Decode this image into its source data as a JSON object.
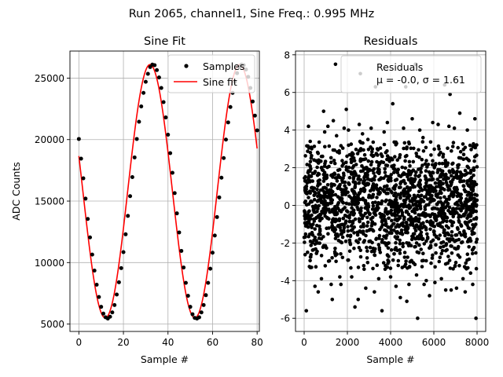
{
  "figure": {
    "suptitle": "Run 2065, channel1, Sine Freq.: 0.995 MHz"
  },
  "colors": {
    "fit_line": "#ff0000",
    "samples": "#000000",
    "residuals": "#000000",
    "grid": "#b0b0b0",
    "axes": "#000000"
  },
  "chart_data": [
    {
      "type": "line",
      "title": "Sine Fit",
      "xlabel": "Sample #",
      "ylabel": "ADC Counts",
      "xlim": [
        -4,
        81
      ],
      "ylim": [
        4400,
        27200
      ],
      "xticks": [
        0,
        20,
        40,
        60,
        80
      ],
      "yticks": [
        5000,
        10000,
        15000,
        20000,
        25000
      ],
      "grid": true,
      "legend": {
        "location": "upper right",
        "entries": [
          "Samples",
          "Sine fit"
        ]
      },
      "fit_model": {
        "offset": 15800,
        "amplitude": 10300,
        "period_samples": 40.2,
        "phase_rad": 2.86
      },
      "series": [
        {
          "name": "Samples",
          "style": "scatter",
          "color": "#000000",
          "x": [
            0,
            1,
            2,
            3,
            4,
            5,
            6,
            7,
            8,
            9,
            10,
            11,
            12,
            13,
            14,
            15,
            16,
            17,
            18,
            19,
            20,
            21,
            22,
            23,
            24,
            25,
            26,
            27,
            28,
            29,
            30,
            31,
            32,
            33,
            34,
            35,
            36,
            37,
            38,
            39,
            40,
            41,
            42,
            43,
            44,
            45,
            46,
            47,
            48,
            49,
            50,
            51,
            52,
            53,
            54,
            55,
            56,
            57,
            58,
            59,
            60,
            61,
            62,
            63,
            64,
            65,
            66,
            67,
            68,
            69,
            70,
            71,
            72,
            73,
            74,
            75,
            76,
            77,
            78,
            79,
            80
          ],
          "y": [
            20050,
            18450,
            16850,
            15200,
            13550,
            12050,
            10650,
            9350,
            8200,
            7200,
            6400,
            5850,
            5550,
            5450,
            5600,
            5950,
            6550,
            7400,
            8400,
            9550,
            10850,
            12300,
            13800,
            15400,
            16950,
            18550,
            20050,
            21450,
            22700,
            23800,
            24700,
            25350,
            25900,
            26100,
            26050,
            25650,
            25050,
            24200,
            23050,
            21800,
            20400,
            18900,
            17300,
            15650,
            14000,
            12450,
            10950,
            9600,
            8350,
            7300,
            6400,
            5800,
            5500,
            5450,
            5550,
            5950,
            6550,
            7350,
            8350,
            9500,
            10800,
            12200,
            13700,
            15300,
            16900,
            18500,
            20000,
            21400,
            22650,
            23800,
            24700,
            25400,
            25900,
            26100,
            26050,
            25700,
            25100,
            24200,
            23100,
            21950,
            20750
          ]
        },
        {
          "name": "Sine fit",
          "style": "line",
          "color": "#ff0000"
        }
      ]
    },
    {
      "type": "scatter",
      "title": "Residuals",
      "xlabel": "Sample #",
      "ylabel": "",
      "xlim": [
        -400,
        8400
      ],
      "ylim": [
        -6.7,
        8.2
      ],
      "xticks": [
        0,
        2000,
        4000,
        6000,
        8000
      ],
      "yticks": [
        -6,
        -4,
        -2,
        0,
        2,
        4,
        6,
        8
      ],
      "grid": true,
      "legend": {
        "location": "upper right",
        "entries": [
          "Residuals"
        ],
        "annotation": "μ = -0.0, σ = 1.61"
      },
      "stats": {
        "n_points": 8000,
        "mu": -0.0,
        "sigma": 1.61
      },
      "series": [
        {
          "name": "Residuals",
          "color": "#000000",
          "outliers": [
            [
              100,
              -5.6
            ],
            [
              200,
              4.2
            ],
            [
              280,
              3.4
            ],
            [
              500,
              -4.3
            ],
            [
              650,
              -4.6
            ],
            [
              800,
              -3.9
            ],
            [
              950,
              3.9
            ],
            [
              1100,
              4.2
            ],
            [
              1250,
              -4.2
            ],
            [
              1300,
              -5.0
            ],
            [
              1350,
              4.5
            ],
            [
              1450,
              7.5
            ],
            [
              1500,
              3.7
            ],
            [
              1650,
              -3.8
            ],
            [
              1700,
              -4.2
            ],
            [
              1850,
              4.1
            ],
            [
              1950,
              5.1
            ],
            [
              2050,
              4.0
            ],
            [
              2200,
              -3.8
            ],
            [
              2350,
              -5.4
            ],
            [
              2500,
              -5.0
            ],
            [
              2550,
              4.3
            ],
            [
              2700,
              3.8
            ],
            [
              2850,
              -4.4
            ],
            [
              2950,
              3.5
            ],
            [
              3100,
              4.1
            ],
            [
              3250,
              -4.6
            ],
            [
              3450,
              -3.9
            ],
            [
              3600,
              -5.6
            ],
            [
              3700,
              3.9
            ],
            [
              3850,
              4.4
            ],
            [
              4000,
              -3.8
            ],
            [
              4100,
              5.4
            ],
            [
              4250,
              -4.3
            ],
            [
              4450,
              -4.9
            ],
            [
              4600,
              4.1
            ],
            [
              4700,
              6.3
            ],
            [
              4750,
              -5.1
            ],
            [
              4850,
              -4.2
            ],
            [
              5000,
              4.6
            ],
            [
              5200,
              -3.7
            ],
            [
              5250,
              -6.0
            ],
            [
              5350,
              4.0
            ],
            [
              5500,
              3.6
            ],
            [
              5550,
              -4.2
            ],
            [
              5650,
              -4.0
            ],
            [
              5800,
              -4.8
            ],
            [
              5950,
              4.4
            ],
            [
              6050,
              -4.1
            ],
            [
              6200,
              4.3
            ],
            [
              6350,
              -3.9
            ],
            [
              6500,
              6.4
            ],
            [
              6550,
              -4.5
            ],
            [
              6700,
              4.2
            ],
            [
              6800,
              -4.5
            ],
            [
              6950,
              4.1
            ],
            [
              7050,
              -4.4
            ],
            [
              7200,
              4.9
            ],
            [
              7350,
              -3.9
            ],
            [
              7450,
              -4.6
            ],
            [
              7550,
              4.0
            ],
            [
              7700,
              -3.6
            ],
            [
              7800,
              -4.2
            ],
            [
              7900,
              4.6
            ],
            [
              7950,
              -6.0
            ],
            [
              2600,
              7.0
            ],
            [
              5150,
              7.5
            ],
            [
              6750,
              5.9
            ],
            [
              3300,
              6.3
            ],
            [
              900,
              5.0
            ]
          ]
        }
      ]
    }
  ]
}
